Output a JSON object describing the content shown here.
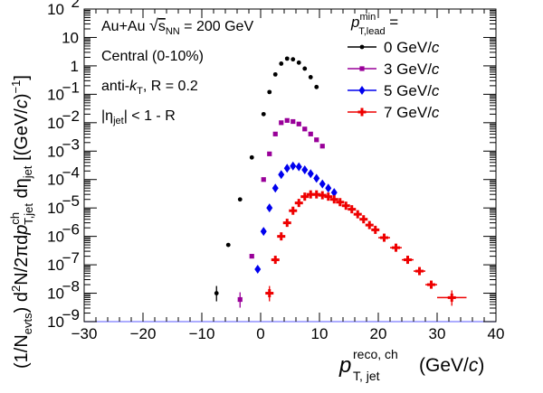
{
  "chart_data": {
    "type": "scatter",
    "log_y": true,
    "xlim": [
      -30,
      40
    ],
    "ylim": [
      1e-09,
      100
    ],
    "grid": false,
    "legend_placement": "top-right",
    "xlabel": {
      "main": "p",
      "sup": "reco, ch",
      "sub": "T, jet",
      "unit": "(GeV/c)"
    },
    "ylabel": "(1/N_evts) d²N/2πdp_T,jet^ch dη_jet [(GeV/c)^-1]",
    "x_ticks": [
      "−30",
      "−20",
      "−10",
      "0",
      "10",
      "20",
      "30",
      "40"
    ],
    "x_tick_values": [
      -30,
      -20,
      -10,
      0,
      10,
      20,
      30,
      40
    ],
    "y_ticks": [
      {
        "mant": "10",
        "exp": "2",
        "value": 100
      },
      {
        "mant": "10",
        "exp": "",
        "value": 10
      },
      {
        "mant": "1",
        "exp": "",
        "value": 1
      },
      {
        "mant": "10",
        "exp": "−1",
        "value": 0.1
      },
      {
        "mant": "10",
        "exp": "−2",
        "value": 0.01
      },
      {
        "mant": "10",
        "exp": "−3",
        "value": 0.001
      },
      {
        "mant": "10",
        "exp": "−4",
        "value": 0.0001
      },
      {
        "mant": "10",
        "exp": "−5",
        "value": 1e-05
      },
      {
        "mant": "10",
        "exp": "−6",
        "value": 1e-06
      },
      {
        "mant": "10",
        "exp": "−7",
        "value": 1e-07
      },
      {
        "mant": "10",
        "exp": "−8",
        "value": 1e-08
      },
      {
        "mant": "10",
        "exp": "−9",
        "value": 1e-09
      }
    ],
    "annotations": [
      {
        "id": "system",
        "text": "Au+Au √s_NN = 200 GeV"
      },
      {
        "id": "centrality",
        "text": "Central (0-10%)"
      },
      {
        "id": "algo",
        "text": "anti-k_T, R = 0.2"
      },
      {
        "id": "eta",
        "text": "|η_jet| < 1 - R"
      }
    ],
    "legend_title": "p_T,lead^min =",
    "series": [
      {
        "name": "0 GeV/c",
        "color": "#000000",
        "marker": "circle",
        "x": [
          -7.5,
          -5.5,
          -3.5,
          -1.5,
          0.5,
          1.5,
          2.5,
          3.5,
          4.5,
          5.5,
          6.5,
          7.5,
          8.5,
          9.5
        ],
        "y": [
          1e-08,
          5e-07,
          2e-05,
          0.0006,
          0.02,
          0.12,
          0.5,
          1.2,
          1.8,
          1.7,
          1.3,
          0.8,
          0.4,
          0.18
        ]
      },
      {
        "name": "3 GeV/c",
        "color": "#990099",
        "marker": "square",
        "x": [
          -3.5,
          -1.5,
          0.5,
          1.5,
          2.5,
          3.5,
          4.5,
          5.5,
          6.5,
          7.5,
          8.5,
          9.5,
          10.5
        ],
        "y": [
          6e-09,
          2e-07,
          0.0001,
          0.0008,
          0.004,
          0.01,
          0.012,
          0.011,
          0.009,
          0.006,
          0.004,
          0.0025,
          0.0015
        ]
      },
      {
        "name": "5 GeV/c",
        "color": "#0000ee",
        "marker": "diamond",
        "x": [
          -0.5,
          0.5,
          1.5,
          2.5,
          3.5,
          4.5,
          5.5,
          6.5,
          7.5,
          8.5,
          9.5,
          10.5,
          11.5,
          12.5
        ],
        "y": [
          7e-08,
          1.5e-06,
          1e-05,
          5e-05,
          0.00015,
          0.00025,
          0.0003,
          0.00028,
          0.00022,
          0.00016,
          0.00011,
          7e-05,
          5e-05,
          3.5e-05
        ]
      },
      {
        "name": "7 GeV/c",
        "color": "#ee0000",
        "marker": "cross",
        "x": [
          1.5,
          2.5,
          3.5,
          4.5,
          5.5,
          6.5,
          7.5,
          8.5,
          9.5,
          10.5,
          11.5,
          12.5,
          13.5,
          14.5,
          15.5,
          16.5,
          17.5,
          18.5,
          19.5,
          21,
          23,
          25,
          27,
          29,
          32.5
        ],
        "y": [
          1e-08,
          1.5e-07,
          1e-06,
          3e-06,
          8e-06,
          1.5e-05,
          2.5e-05,
          3e-05,
          3e-05,
          2.8e-05,
          2.5e-05,
          2e-05,
          1.6e-05,
          1.2e-05,
          9e-06,
          6e-06,
          4e-06,
          2.5e-06,
          1.7e-06,
          9e-07,
          4e-07,
          1.5e-07,
          6e-08,
          2e-08,
          7e-09
        ],
        "xerr": [
          0.5,
          0.5,
          0.5,
          0.5,
          0.5,
          0.5,
          0.5,
          0.5,
          0.5,
          0.5,
          0.5,
          0.5,
          0.5,
          0.5,
          0.5,
          0.5,
          0.5,
          0.5,
          0.5,
          1,
          1,
          1,
          1,
          1,
          2.5
        ]
      }
    ]
  }
}
